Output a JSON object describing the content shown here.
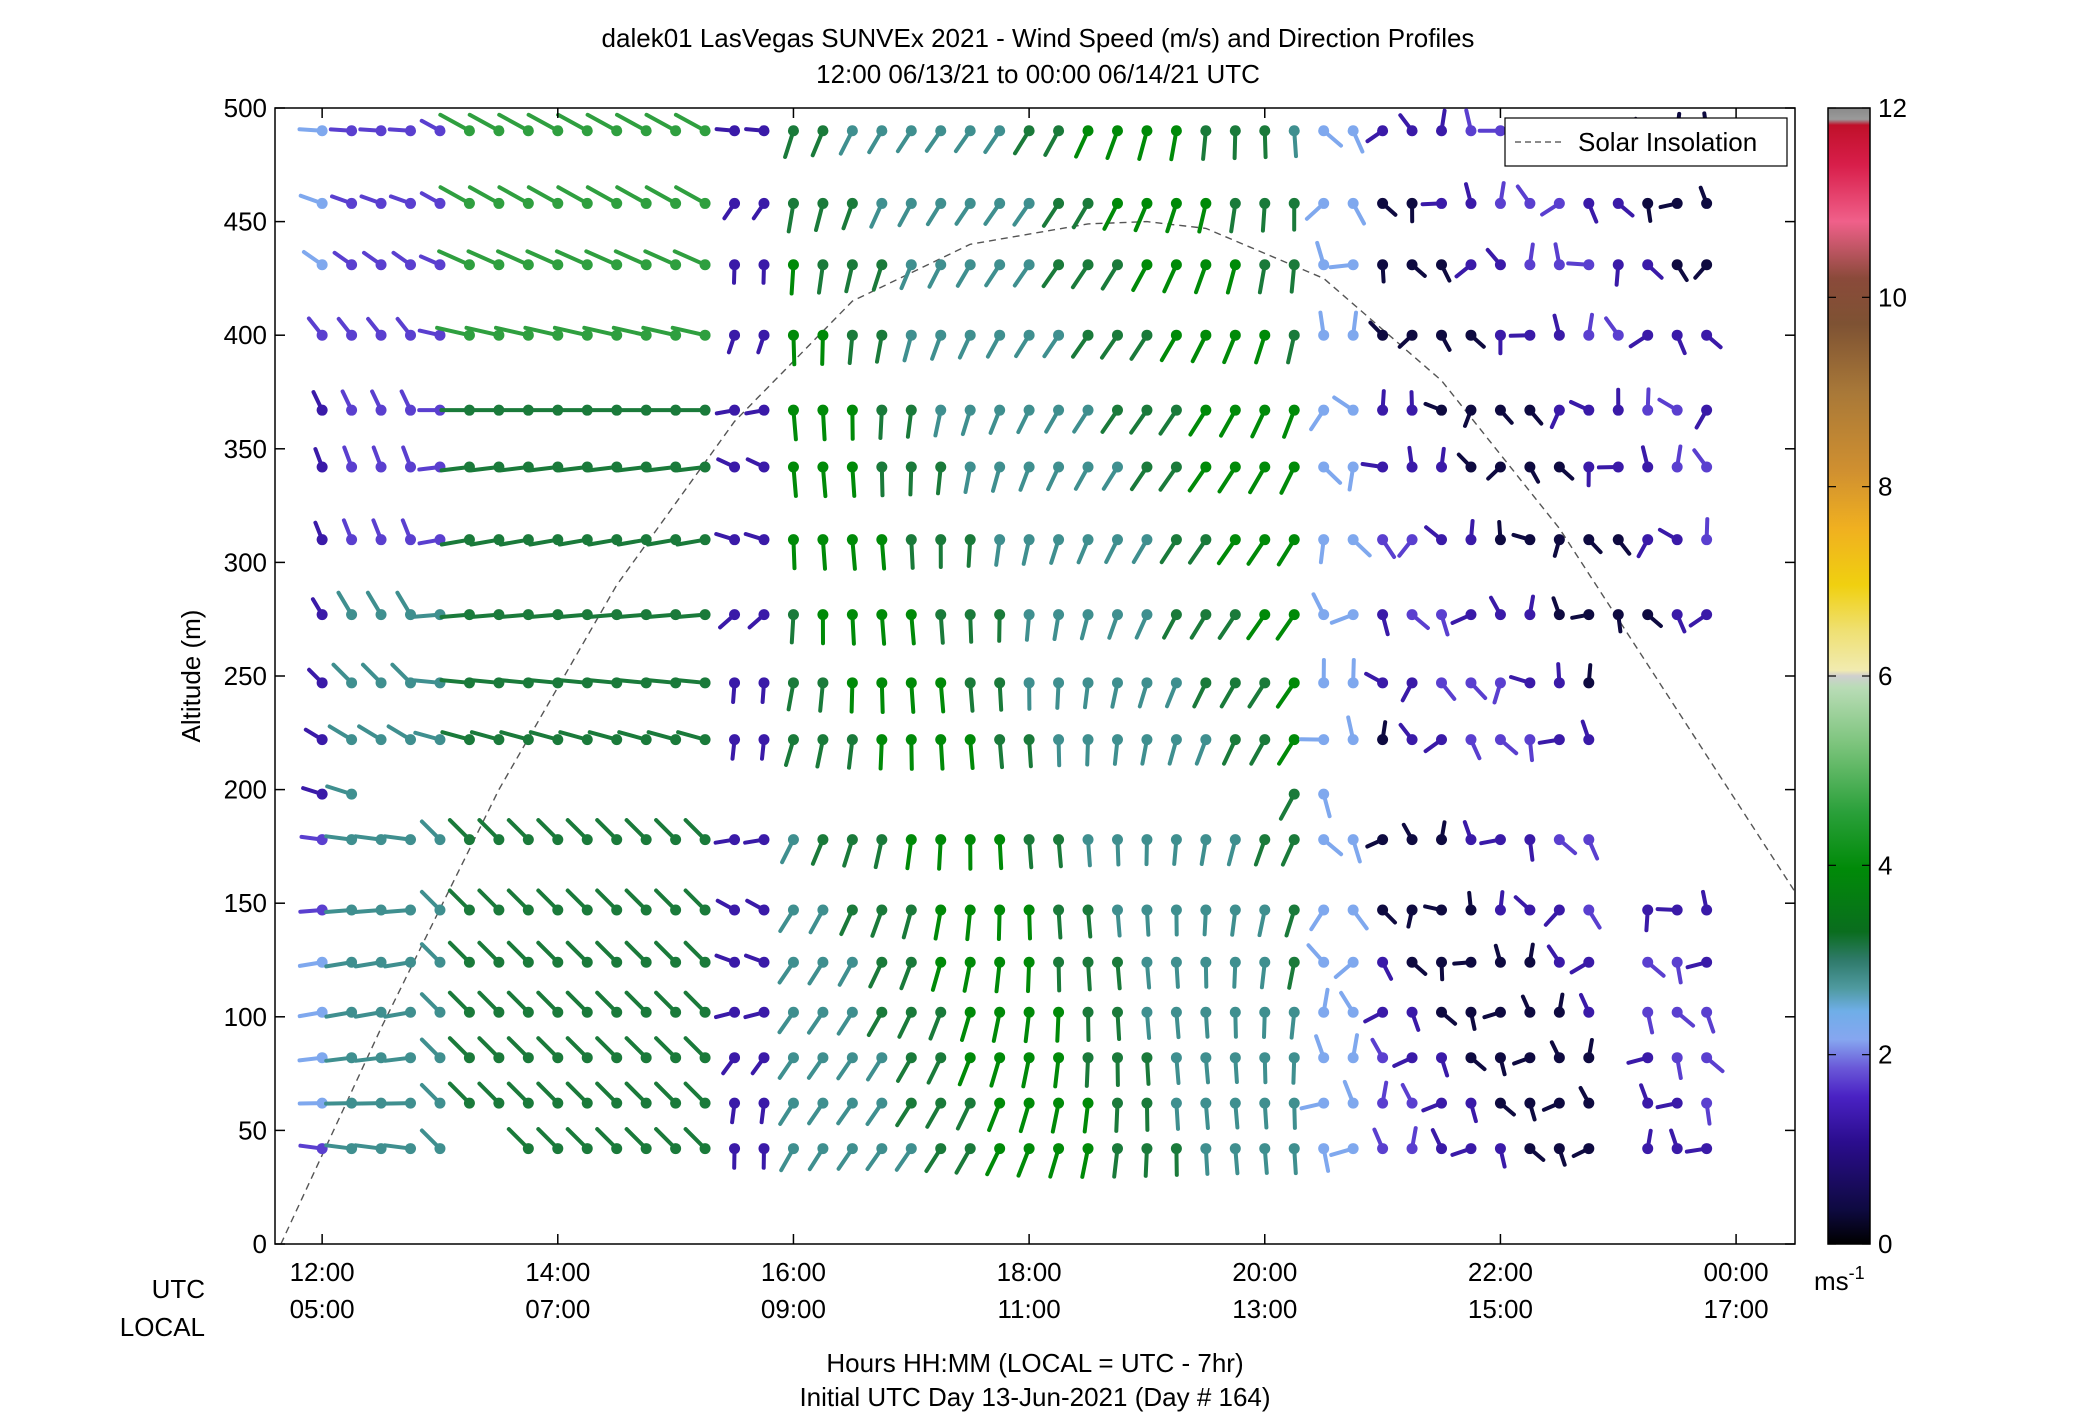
{
  "chart_data": {
    "type": "wind-profile",
    "title_line1": "dalek01 LasVegas SUNVEx 2021 - Wind Speed (m/s) and Direction Profiles",
    "title_line2": "12:00 06/13/21 to 00:00 06/14/21  UTC",
    "ylabel": "Altitude (m)",
    "ylim": [
      0,
      500
    ],
    "yticks": [
      "0",
      "50",
      "100",
      "150",
      "200",
      "250",
      "300",
      "350",
      "400",
      "450",
      "500"
    ],
    "xlim_hours": [
      11.6,
      24.5
    ],
    "xticks_hours": [
      12,
      14,
      16,
      18,
      20,
      22,
      24
    ],
    "xtick_utc": [
      "12:00",
      "14:00",
      "16:00",
      "18:00",
      "20:00",
      "22:00",
      "00:00"
    ],
    "xtick_local": [
      "05:00",
      "07:00",
      "09:00",
      "11:00",
      "13:00",
      "15:00",
      "17:00"
    ],
    "row_label_utc": "UTC",
    "row_label_local": "LOCAL",
    "xlabel_line1": "Hours HH:MM  (LOCAL = UTC - 7hr)",
    "xlabel_line2": "Initial UTC Day 13-Jun-2021 (Day # 164)",
    "legend": {
      "label": "Solar Insolation",
      "position": "top-right",
      "style": "dashed"
    },
    "colorbar": {
      "range": [
        0,
        12
      ],
      "ticks": [
        "0",
        "2",
        "4",
        "6",
        "8",
        "10",
        "12"
      ],
      "unit_main": "ms",
      "unit_exp": "-1"
    },
    "altitudes": [
      42,
      62,
      82,
      102,
      124,
      147,
      178,
      198,
      222,
      247,
      277,
      310,
      342,
      367,
      400,
      431,
      458,
      490
    ],
    "solar_curve": [
      [
        11.65,
        0
      ],
      [
        12.5,
        95
      ],
      [
        13.5,
        200
      ],
      [
        14.5,
        290
      ],
      [
        15.5,
        362
      ],
      [
        16.5,
        415
      ],
      [
        17.5,
        440
      ],
      [
        18.5,
        449
      ],
      [
        19.0,
        450
      ],
      [
        19.5,
        447
      ],
      [
        20.5,
        425
      ],
      [
        21.5,
        380
      ],
      [
        22.5,
        315
      ],
      [
        23.5,
        235
      ],
      [
        24.5,
        155
      ]
    ]
  }
}
